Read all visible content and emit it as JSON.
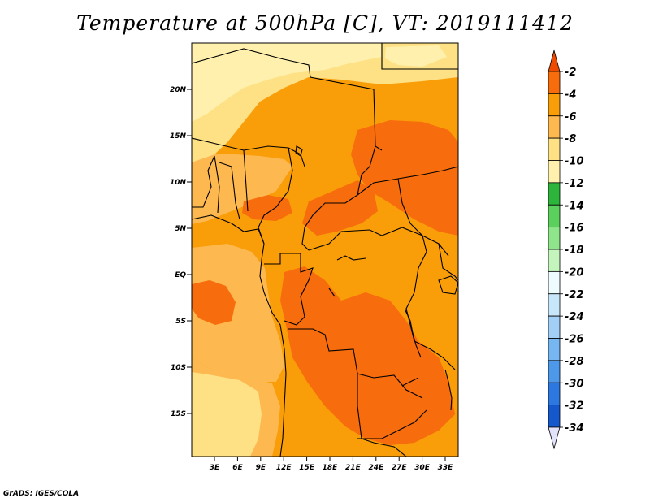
{
  "title": "Temperature at 500hPa [C], VT: 2019111412",
  "credit": "GrADS: IGES/COLA",
  "map": {
    "lat_ticks": [
      "20N",
      "15N",
      "10N",
      "5N",
      "EQ",
      "5S",
      "10S",
      "15S"
    ],
    "lon_ticks": [
      "3E",
      "6E",
      "9E",
      "12E",
      "15E",
      "18E",
      "21E",
      "24E",
      "27E",
      "30E",
      "33E"
    ],
    "fill_colors": {
      "minus_8_to_6": "#fdb84f",
      "minus_6_to_4": "#f99d08",
      "minus_4_to_2": "#f76c0c",
      "minus_10_to_8": "#fee085",
      "minus_12_to_10": "#fff1ad"
    }
  },
  "colorbar": {
    "labels": [
      "-2",
      "-4",
      "-6",
      "-8",
      "-10",
      "-12",
      "-14",
      "-16",
      "-18",
      "-20",
      "-22",
      "-24",
      "-26",
      "-28",
      "-30",
      "-32",
      "-34"
    ],
    "colors": [
      "#f04a00",
      "#f76c0c",
      "#f99d08",
      "#fdb84f",
      "#fee085",
      "#fff1ad",
      "#2db43a",
      "#5cd05c",
      "#8fe68a",
      "#c3f5bd",
      "#eefbff",
      "#c8e6fa",
      "#a2cff6",
      "#76b6f1",
      "#4e98ea",
      "#2d77e0",
      "#1558cc",
      "#0c3db5",
      "#101266",
      "#e2e2fa"
    ]
  }
}
